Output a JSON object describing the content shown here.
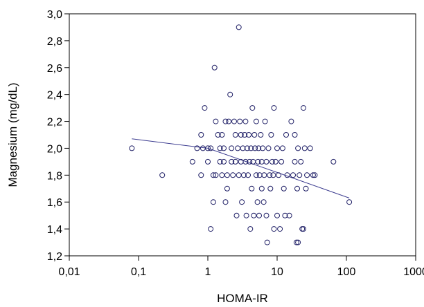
{
  "chart_data": {
    "type": "scatter",
    "xlabel": "HOMA-IR",
    "ylabel": "Magnesium (mg/dL)",
    "x_scale": "log",
    "xlim": [
      0.01,
      1000
    ],
    "ylim": [
      1.2,
      3.0
    ],
    "x_ticks": [
      {
        "value": 0.01,
        "label": "0,01"
      },
      {
        "value": 0.1,
        "label": "0,1"
      },
      {
        "value": 1,
        "label": "1"
      },
      {
        "value": 10,
        "label": "10"
      },
      {
        "value": 100,
        "label": "100"
      },
      {
        "value": 1000,
        "label": "1000"
      }
    ],
    "y_ticks": [
      {
        "value": 1.2,
        "label": "1,2"
      },
      {
        "value": 1.4,
        "label": "1,4"
      },
      {
        "value": 1.6,
        "label": "1,6"
      },
      {
        "value": 1.8,
        "label": "1,8"
      },
      {
        "value": 2.0,
        "label": "2,0"
      },
      {
        "value": 2.2,
        "label": "2,2"
      },
      {
        "value": 2.4,
        "label": "2,4"
      },
      {
        "value": 2.6,
        "label": "2,6"
      },
      {
        "value": 2.8,
        "label": "2,8"
      },
      {
        "value": 3.0,
        "label": "3,0"
      }
    ],
    "grid": false,
    "marker_color": "#1f1f66",
    "fit_line_color": "#3b3b8f",
    "points": [
      [
        0.08,
        2.0
      ],
      [
        0.22,
        1.8
      ],
      [
        0.6,
        1.9
      ],
      [
        0.7,
        2.0
      ],
      [
        0.8,
        1.8
      ],
      [
        0.8,
        2.1
      ],
      [
        0.85,
        2.0
      ],
      [
        0.9,
        2.3
      ],
      [
        1.0,
        2.0
      ],
      [
        1.0,
        1.9
      ],
      [
        1.1,
        1.4
      ],
      [
        1.1,
        2.0
      ],
      [
        1.2,
        1.8
      ],
      [
        1.2,
        1.6
      ],
      [
        1.25,
        2.6
      ],
      [
        1.3,
        1.8
      ],
      [
        1.3,
        2.2
      ],
      [
        1.4,
        2.1
      ],
      [
        1.5,
        1.9
      ],
      [
        1.5,
        2.0
      ],
      [
        1.6,
        1.8
      ],
      [
        1.6,
        2.1
      ],
      [
        1.7,
        1.9
      ],
      [
        1.7,
        2.0
      ],
      [
        1.8,
        1.6
      ],
      [
        1.8,
        2.2
      ],
      [
        1.9,
        1.7
      ],
      [
        1.9,
        1.8
      ],
      [
        2.0,
        2.2
      ],
      [
        2.1,
        2.4
      ],
      [
        2.2,
        1.9
      ],
      [
        2.2,
        2.0
      ],
      [
        2.3,
        1.8
      ],
      [
        2.4,
        2.2
      ],
      [
        2.5,
        2.1
      ],
      [
        2.5,
        1.9
      ],
      [
        2.6,
        1.5
      ],
      [
        2.7,
        2.0
      ],
      [
        2.8,
        2.9
      ],
      [
        2.8,
        1.8
      ],
      [
        2.9,
        2.2
      ],
      [
        3.0,
        1.9
      ],
      [
        3.0,
        2.1
      ],
      [
        3.1,
        1.6
      ],
      [
        3.2,
        2.0
      ],
      [
        3.3,
        1.8
      ],
      [
        3.4,
        2.1
      ],
      [
        3.5,
        1.9
      ],
      [
        3.5,
        2.2
      ],
      [
        3.6,
        1.5
      ],
      [
        3.7,
        2.0
      ],
      [
        3.8,
        1.8
      ],
      [
        3.9,
        2.1
      ],
      [
        4.0,
        1.9
      ],
      [
        4.1,
        1.4
      ],
      [
        4.2,
        2.0
      ],
      [
        4.3,
        1.7
      ],
      [
        4.4,
        2.3
      ],
      [
        4.5,
        1.9
      ],
      [
        4.6,
        1.5
      ],
      [
        4.7,
        2.1
      ],
      [
        4.8,
        2.0
      ],
      [
        5.0,
        1.8
      ],
      [
        5.0,
        2.2
      ],
      [
        5.2,
        1.6
      ],
      [
        5.3,
        1.9
      ],
      [
        5.4,
        2.0
      ],
      [
        5.5,
        1.5
      ],
      [
        5.6,
        1.8
      ],
      [
        5.8,
        2.1
      ],
      [
        6.0,
        1.9
      ],
      [
        6.0,
        1.7
      ],
      [
        6.2,
        2.0
      ],
      [
        6.4,
        1.6
      ],
      [
        6.5,
        1.8
      ],
      [
        6.7,
        2.2
      ],
      [
        7.0,
        1.9
      ],
      [
        7.0,
        1.5
      ],
      [
        7.2,
        1.3
      ],
      [
        7.5,
        2.0
      ],
      [
        7.8,
        1.8
      ],
      [
        8.0,
        1.7
      ],
      [
        8.2,
        2.1
      ],
      [
        8.5,
        1.9
      ],
      [
        8.8,
        1.8
      ],
      [
        9.0,
        1.4
      ],
      [
        9.0,
        2.3
      ],
      [
        9.5,
        1.9
      ],
      [
        10.0,
        2.0
      ],
      [
        10.0,
        1.5
      ],
      [
        10.5,
        1.8
      ],
      [
        11.0,
        1.4
      ],
      [
        11.5,
        1.9
      ],
      [
        12.0,
        2.0
      ],
      [
        12.5,
        1.7
      ],
      [
        13.0,
        1.5
      ],
      [
        13.5,
        2.1
      ],
      [
        14.0,
        1.8
      ],
      [
        15.0,
        1.5
      ],
      [
        16.0,
        2.2
      ],
      [
        17.0,
        1.8
      ],
      [
        18.0,
        1.9
      ],
      [
        18.0,
        2.1
      ],
      [
        19.0,
        1.3
      ],
      [
        19.5,
        1.7
      ],
      [
        20.0,
        2.0
      ],
      [
        20.0,
        1.3
      ],
      [
        21.0,
        1.8
      ],
      [
        22.0,
        1.9
      ],
      [
        23.0,
        1.4
      ],
      [
        24.0,
        2.3
      ],
      [
        24.0,
        1.4
      ],
      [
        25.0,
        2.0
      ],
      [
        26.0,
        1.7
      ],
      [
        27.0,
        1.8
      ],
      [
        30.0,
        2.0
      ],
      [
        33.0,
        1.8
      ],
      [
        35.0,
        1.8
      ],
      [
        65.0,
        1.9
      ],
      [
        110.0,
        1.6
      ]
    ],
    "fit_line": [
      [
        0.08,
        2.07
      ],
      [
        1.0,
        2.0
      ],
      [
        10.0,
        1.82
      ],
      [
        110.0,
        1.63
      ]
    ]
  }
}
